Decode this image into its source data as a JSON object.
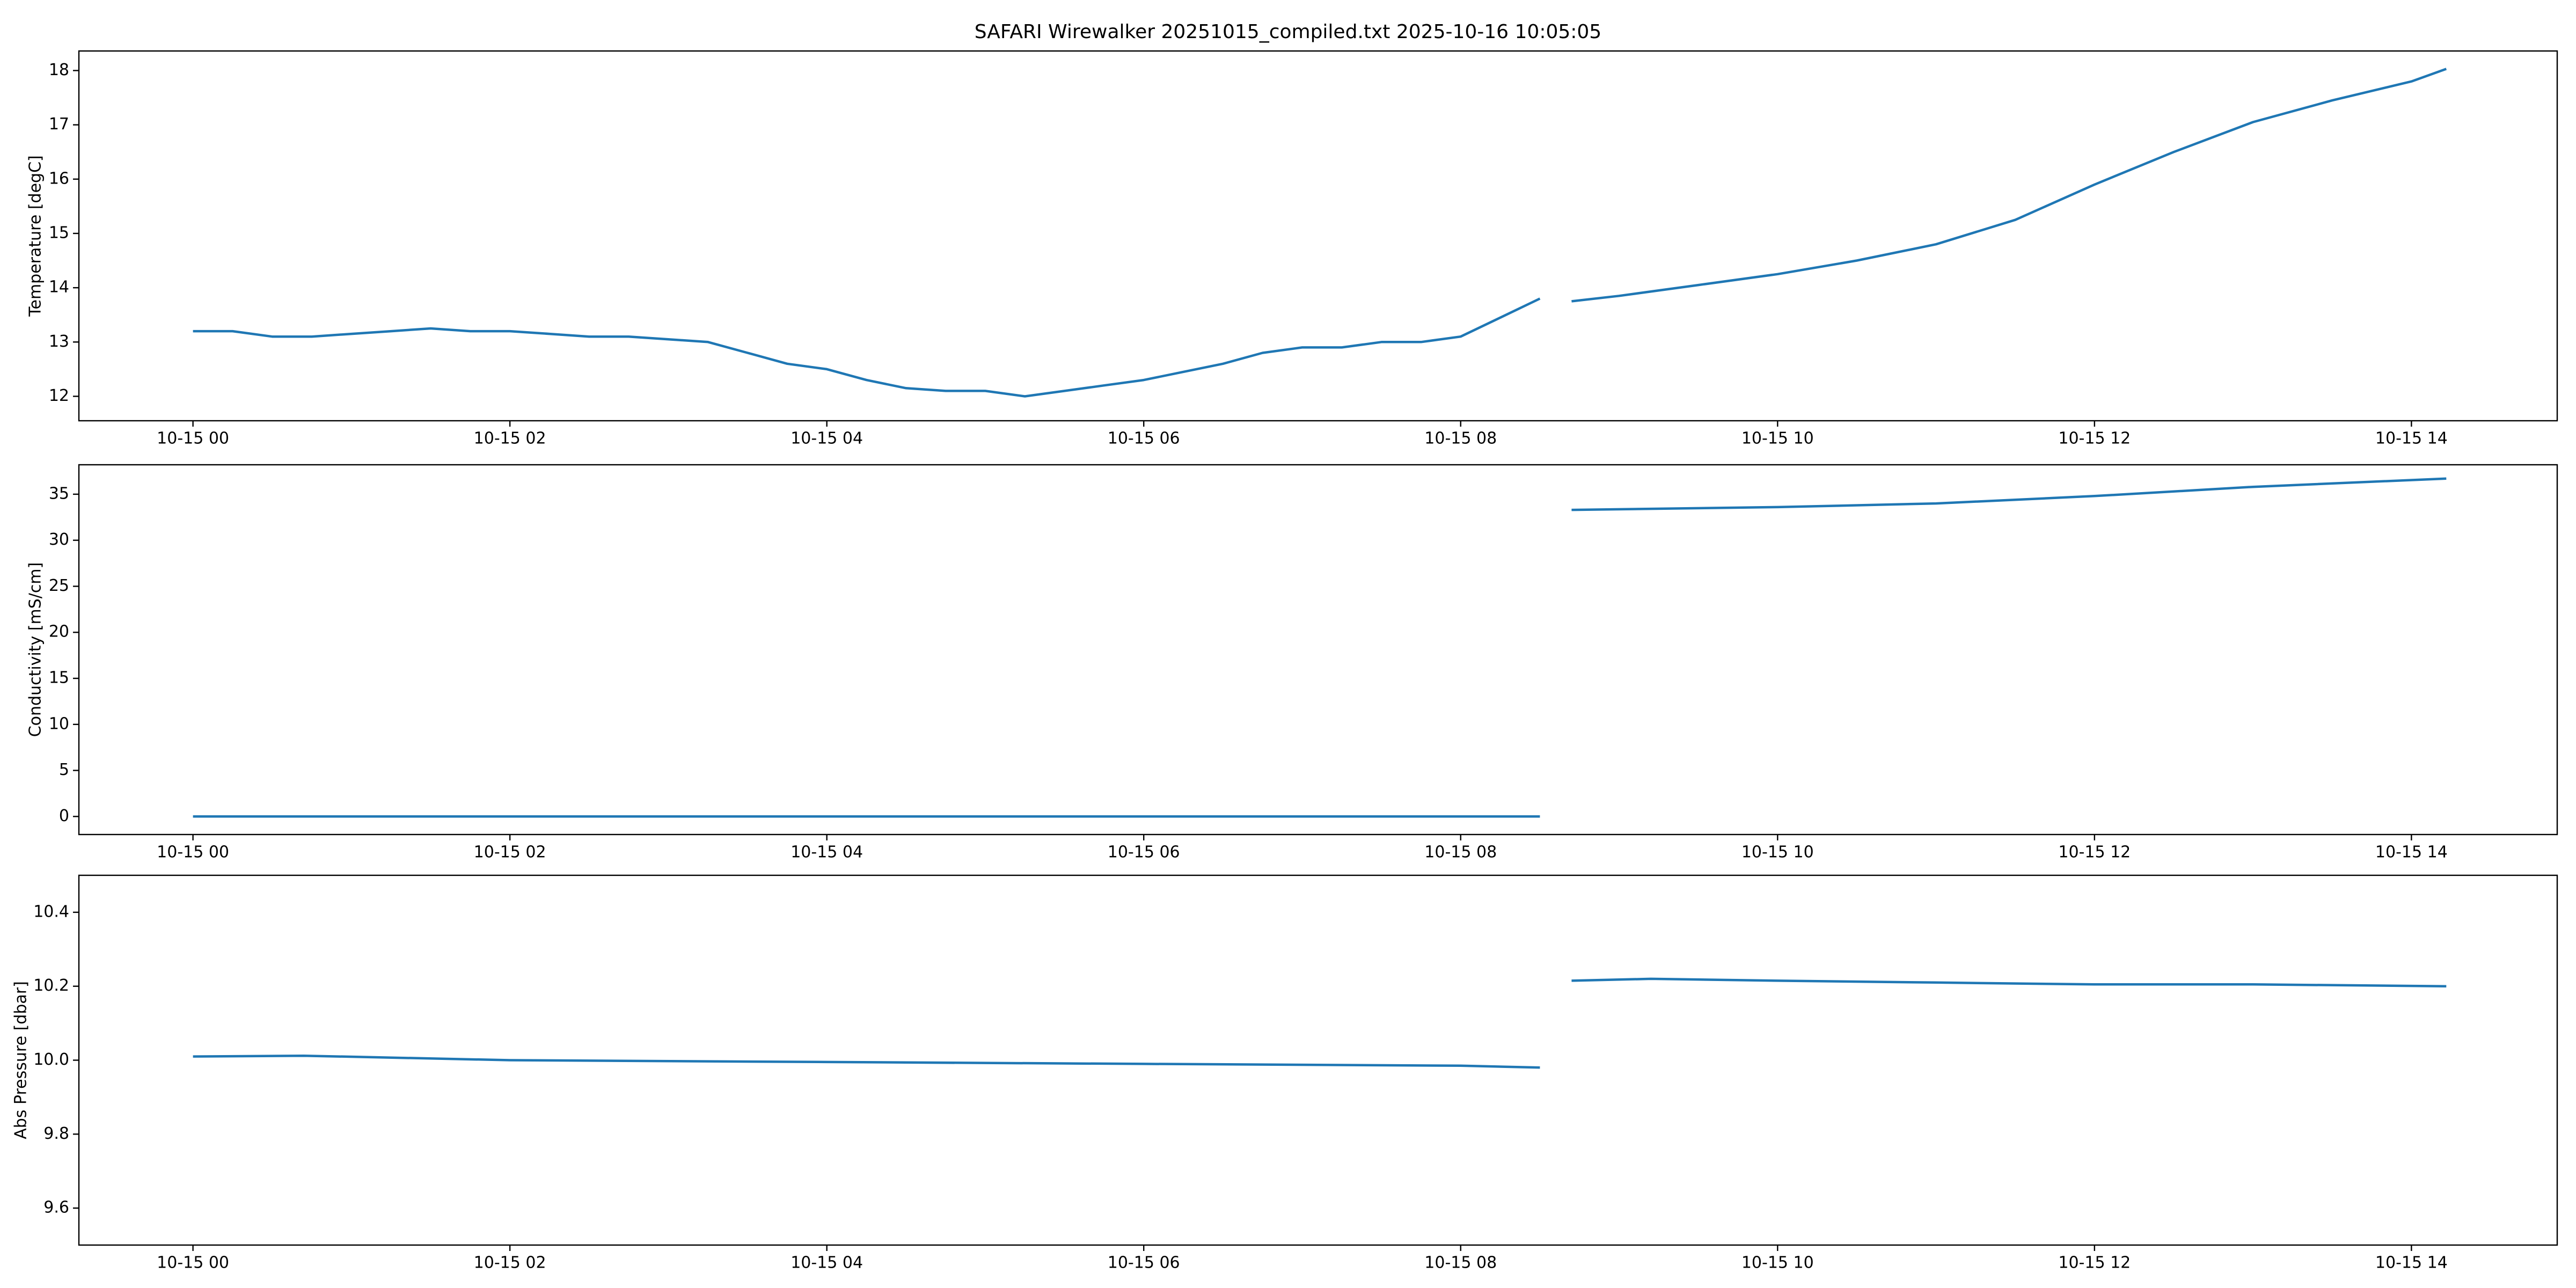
{
  "title": "SAFARI Wirewalker 20251015_compiled.txt 2025-10-16 10:05:05",
  "chart_data": [
    {
      "type": "line",
      "ylabel": "Temperature [degC]",
      "color": "#1f77b4",
      "x": [
        0,
        0.25,
        0.5,
        0.75,
        1,
        1.25,
        1.5,
        1.75,
        2,
        2.25,
        2.5,
        2.75,
        3,
        3.25,
        3.5,
        3.75,
        4,
        4.25,
        4.5,
        4.75,
        5,
        5.25,
        5.5,
        5.75,
        6,
        6.25,
        6.5,
        6.75,
        7,
        7.25,
        7.5,
        7.75,
        8,
        8.25,
        8.5,
        8.6,
        8.7,
        9,
        9.5,
        10,
        10.5,
        11,
        11.5,
        12,
        12.5,
        13,
        13.5,
        14,
        14.22
      ],
      "values": [
        13.2,
        13.2,
        13.1,
        13.1,
        13.15,
        13.2,
        13.25,
        13.2,
        13.2,
        13.15,
        13.1,
        13.1,
        13.05,
        13.0,
        12.8,
        12.6,
        12.5,
        12.3,
        12.15,
        12.1,
        12.1,
        12.0,
        12.1,
        12.2,
        12.3,
        12.45,
        12.6,
        12.8,
        12.9,
        12.9,
        13.0,
        13.0,
        13.1,
        13.45,
        13.8,
        null,
        13.75,
        13.85,
        14.05,
        14.25,
        14.5,
        14.8,
        15.25,
        15.9,
        16.5,
        17.05,
        17.45,
        17.8,
        18.03
      ],
      "xlim": [
        -0.72,
        14.92
      ],
      "xticks": [
        {
          "value": 0,
          "label": "10-15 00"
        },
        {
          "value": 2,
          "label": "10-15 02"
        },
        {
          "value": 4,
          "label": "10-15 04"
        },
        {
          "value": 6,
          "label": "10-15 06"
        },
        {
          "value": 8,
          "label": "10-15 08"
        },
        {
          "value": 10,
          "label": "10-15 10"
        },
        {
          "value": 12,
          "label": "10-15 12"
        },
        {
          "value": 14,
          "label": "10-15 14"
        }
      ],
      "ylim": [
        11.55,
        18.36
      ],
      "yticks": [
        12,
        13,
        14,
        15,
        16,
        17,
        18
      ]
    },
    {
      "type": "line",
      "ylabel": "Conductivity [mS/cm]",
      "color": "#1f77b4",
      "x": [
        0,
        2,
        4,
        6,
        8,
        8.5,
        8.6,
        8.7,
        10,
        11,
        12,
        13,
        14.22
      ],
      "values": [
        0,
        0,
        0,
        0,
        0,
        0,
        null,
        33.3,
        33.6,
        34.0,
        34.8,
        35.8,
        36.7
      ],
      "xlim": [
        -0.72,
        14.92
      ],
      "xticks": [
        {
          "value": 0,
          "label": "10-15 00"
        },
        {
          "value": 2,
          "label": "10-15 02"
        },
        {
          "value": 4,
          "label": "10-15 04"
        },
        {
          "value": 6,
          "label": "10-15 06"
        },
        {
          "value": 8,
          "label": "10-15 08"
        },
        {
          "value": 10,
          "label": "10-15 10"
        },
        {
          "value": 12,
          "label": "10-15 12"
        },
        {
          "value": 14,
          "label": "10-15 14"
        }
      ],
      "ylim": [
        -1.96,
        38.2
      ],
      "yticks": [
        0,
        5,
        10,
        15,
        20,
        25,
        30,
        35
      ]
    },
    {
      "type": "line",
      "ylabel": "Abs Pressure [dbar]",
      "color": "#1f77b4",
      "x": [
        0,
        0.7,
        2,
        4,
        6,
        8,
        8.5,
        8.6,
        8.7,
        9.2,
        10,
        11,
        12,
        13,
        14.22
      ],
      "values": [
        10.01,
        10.012,
        10.0,
        9.995,
        9.99,
        9.985,
        9.98,
        null,
        10.215,
        10.22,
        10.215,
        10.21,
        10.205,
        10.205,
        10.2
      ],
      "xlim": [
        -0.72,
        14.92
      ],
      "xticks": [
        {
          "value": 0,
          "label": "10-15 00"
        },
        {
          "value": 2,
          "label": "10-15 02"
        },
        {
          "value": 4,
          "label": "10-15 04"
        },
        {
          "value": 6,
          "label": "10-15 06"
        },
        {
          "value": 8,
          "label": "10-15 08"
        },
        {
          "value": 10,
          "label": "10-15 10"
        },
        {
          "value": 12,
          "label": "10-15 12"
        },
        {
          "value": 14,
          "label": "10-15 14"
        }
      ],
      "ylim": [
        9.5,
        10.5
      ],
      "yticks": [
        {
          "value": 9.6,
          "label": "9.6"
        },
        {
          "value": 9.8,
          "label": "9.8"
        },
        {
          "value": 10,
          "label": "10.0"
        },
        {
          "value": 10.2,
          "label": "10.2"
        },
        {
          "value": 10.4,
          "label": "10.4"
        }
      ]
    }
  ]
}
